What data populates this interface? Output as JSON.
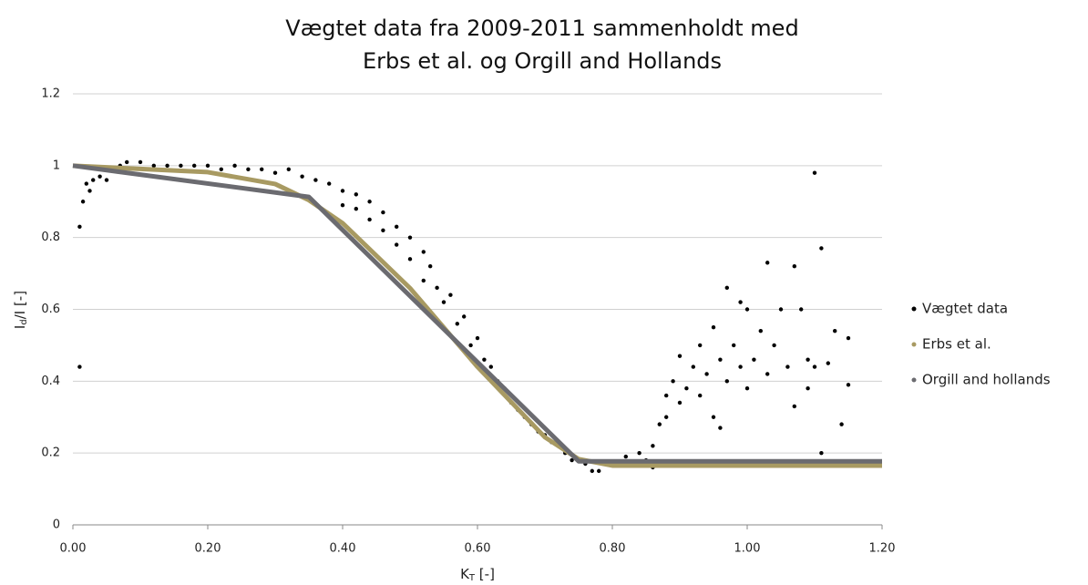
{
  "chart_data": {
    "type": "scatter",
    "title": [
      "Vægtet data fra 2009-2011 sammenholdt med",
      "Erbs et al. og Orgill and Hollands"
    ],
    "x_label": {
      "main": "K",
      "sub": "T",
      "rest": " [-]"
    },
    "y_label": {
      "main": "I",
      "sub": "d",
      "rest": "/I [-]"
    },
    "xlim": [
      0,
      1.2
    ],
    "ylim": [
      0,
      1.2
    ],
    "xticks": [
      {
        "value": 0,
        "label": "0.00"
      },
      {
        "value": 0.2,
        "label": "0.20"
      },
      {
        "value": 0.4,
        "label": "0.40"
      },
      {
        "value": 0.6,
        "label": "0.60"
      },
      {
        "value": 0.8,
        "label": "0.80"
      },
      {
        "value": 1,
        "label": "1.00"
      },
      {
        "value": 1.2,
        "label": "1.20"
      }
    ],
    "yticks": [
      0,
      0.2,
      0.4,
      0.6,
      0.8,
      1,
      1.2
    ],
    "grid": true,
    "legend": "right",
    "series": [
      {
        "name": "Vægtet data",
        "type": "scatter",
        "color": "#000000",
        "x": [
          0.01,
          0.01,
          0.015,
          0.02,
          0.025,
          0.03,
          0.04,
          0.05,
          0.06,
          0.07,
          0.08,
          0.1,
          0.12,
          0.14,
          0.16,
          0.18,
          0.2,
          0.22,
          0.24,
          0.26,
          0.28,
          0.3,
          0.32,
          0.34,
          0.36,
          0.38,
          0.4,
          0.4,
          0.42,
          0.42,
          0.44,
          0.44,
          0.46,
          0.46,
          0.48,
          0.48,
          0.5,
          0.5,
          0.52,
          0.52,
          0.53,
          0.54,
          0.55,
          0.56,
          0.57,
          0.58,
          0.59,
          0.6,
          0.61,
          0.62,
          0.63,
          0.64,
          0.65,
          0.66,
          0.67,
          0.68,
          0.69,
          0.7,
          0.71,
          0.72,
          0.73,
          0.74,
          0.76,
          0.77,
          0.78,
          0.8,
          0.82,
          0.84,
          0.85,
          0.86,
          0.87,
          0.88,
          0.88,
          0.89,
          0.9,
          0.9,
          0.91,
          0.92,
          0.93,
          0.93,
          0.94,
          0.95,
          0.95,
          0.96,
          0.97,
          0.97,
          0.98,
          0.99,
          1.0,
          1.0,
          1.01,
          1.02,
          1.03,
          1.03,
          1.04,
          1.05,
          1.06,
          1.07,
          1.07,
          1.08,
          1.09,
          1.1,
          1.1,
          1.11,
          1.11,
          1.12,
          1.13,
          1.14,
          1.15,
          1.15,
          0.96,
          1.09,
          0.99,
          0.86
        ],
        "values": [
          0.44,
          0.83,
          0.9,
          0.95,
          0.93,
          0.96,
          0.97,
          0.96,
          0.99,
          1.0,
          1.01,
          1.01,
          1.0,
          1.0,
          1.0,
          1.0,
          1.0,
          0.99,
          1.0,
          0.99,
          0.99,
          0.98,
          0.99,
          0.97,
          0.96,
          0.95,
          0.93,
          0.89,
          0.92,
          0.88,
          0.9,
          0.85,
          0.87,
          0.82,
          0.83,
          0.78,
          0.8,
          0.74,
          0.76,
          0.68,
          0.72,
          0.66,
          0.62,
          0.64,
          0.56,
          0.58,
          0.5,
          0.52,
          0.46,
          0.44,
          0.4,
          0.38,
          0.34,
          0.32,
          0.3,
          0.28,
          0.26,
          0.25,
          0.23,
          0.22,
          0.2,
          0.18,
          0.17,
          0.15,
          0.15,
          0.17,
          0.19,
          0.2,
          0.18,
          0.22,
          0.28,
          0.36,
          0.3,
          0.4,
          0.34,
          0.47,
          0.38,
          0.44,
          0.5,
          0.36,
          0.42,
          0.55,
          0.3,
          0.46,
          0.66,
          0.4,
          0.5,
          0.44,
          0.6,
          0.38,
          0.46,
          0.54,
          0.73,
          0.42,
          0.5,
          0.6,
          0.44,
          0.72,
          0.33,
          0.6,
          0.46,
          0.98,
          0.44,
          0.77,
          0.2,
          0.45,
          0.54,
          0.28,
          0.52,
          0.39,
          0.27,
          0.38,
          0.62,
          0.16
        ]
      },
      {
        "name": "Erbs et al.",
        "type": "line",
        "color": "#a89a62",
        "x": [
          0,
          0.1,
          0.2,
          0.3,
          0.35,
          0.4,
          0.5,
          0.6,
          0.7,
          0.75,
          0.8,
          1.0,
          1.2
        ],
        "values": [
          1,
          0.991,
          0.982,
          0.949,
          0.904,
          0.84,
          0.659,
          0.44,
          0.244,
          0.183,
          0.165,
          0.165,
          0.165
        ]
      },
      {
        "name": "Orgill and hollands",
        "type": "line",
        "color": "#6b6b70",
        "x": [
          0,
          0.35,
          0.75,
          1.2
        ],
        "values": [
          1,
          0.913,
          0.177,
          0.177
        ]
      }
    ]
  }
}
